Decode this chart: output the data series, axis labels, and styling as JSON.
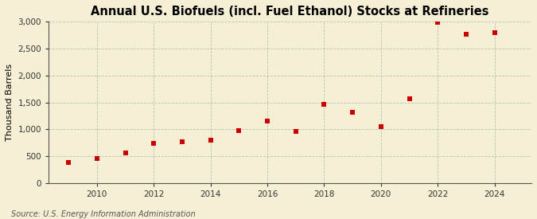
{
  "title": "Annual U.S. Biofuels (incl. Fuel Ethanol) Stocks at Refineries",
  "ylabel": "Thousand Barrels",
  "source": "Source: U.S. Energy Information Administration",
  "years": [
    2009,
    2010,
    2011,
    2012,
    2013,
    2014,
    2015,
    2016,
    2017,
    2018,
    2019,
    2020,
    2021,
    2022,
    2023,
    2024
  ],
  "values": [
    380,
    460,
    560,
    740,
    760,
    790,
    980,
    1150,
    960,
    1470,
    1320,
    1050,
    1570,
    2990,
    2760,
    2800
  ],
  "marker_color": "#cc0000",
  "bg_color": "#f5efd5",
  "plot_bg_color": "#f5efd5",
  "grid_color": "#aaaaaa",
  "ylim": [
    0,
    3000
  ],
  "yticks": [
    0,
    500,
    1000,
    1500,
    2000,
    2500,
    3000
  ],
  "xlim": [
    2008.3,
    2025.3
  ],
  "xticks": [
    2010,
    2012,
    2014,
    2016,
    2018,
    2020,
    2022,
    2024
  ],
  "title_fontsize": 10.5,
  "label_fontsize": 8,
  "tick_fontsize": 7.5,
  "source_fontsize": 7
}
